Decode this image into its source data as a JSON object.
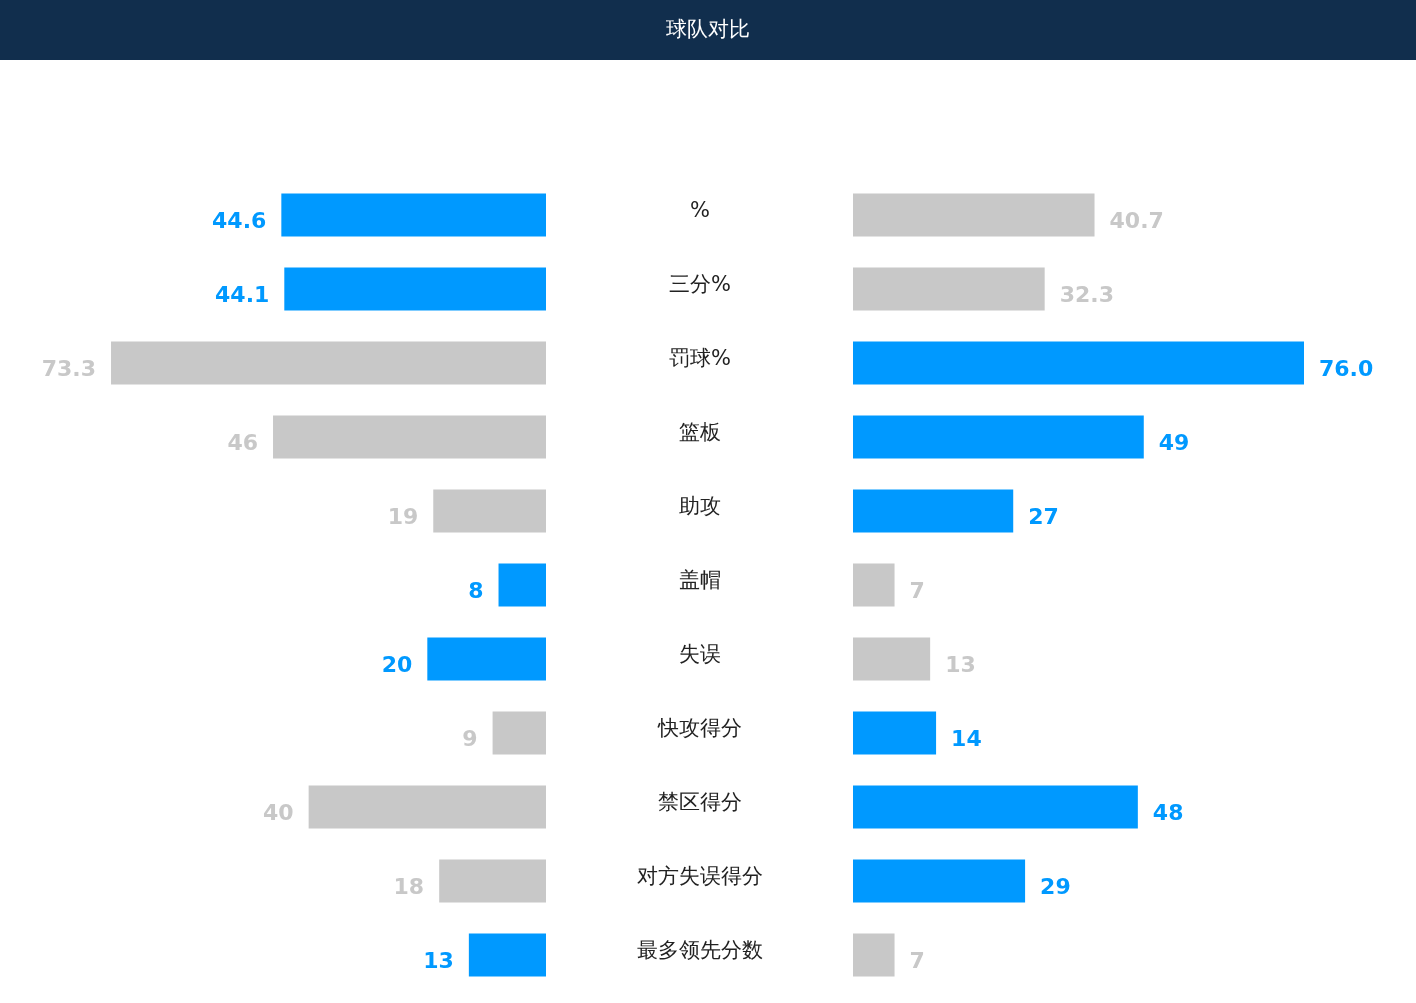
{
  "chart_data": [
    {
      "type": "bar",
      "orientation": "horizontal",
      "title": "球队对比",
      "categories": [
        "%",
        "三分%",
        "罚球%",
        "篮板",
        "助攻",
        "盖帽",
        "失误",
        "快攻得分",
        "禁区得分",
        "对方失误得分",
        "最多领先分数"
      ],
      "values": [
        44.6,
        44.1,
        73.3,
        46,
        19,
        8,
        20,
        9,
        40,
        18,
        13
      ],
      "value_labels": [
        "44.6",
        "44.1",
        "73.3",
        "46",
        "19",
        "8",
        "20",
        "9",
        "40",
        "18",
        "13"
      ],
      "colors": [
        "#0099ff",
        "#0099ff",
        "#c8c8c8",
        "#c8c8c8",
        "#c8c8c8",
        "#0099ff",
        "#0099ff",
        "#c8c8c8",
        "#c8c8c8",
        "#c8c8c8",
        "#0099ff"
      ]
    },
    {
      "type": "bar",
      "orientation": "horizontal",
      "categories": [
        null,
        null,
        null,
        null,
        null,
        null,
        null,
        null,
        null,
        null,
        null
      ],
      "values": [
        40.7,
        32.3,
        76.0,
        49,
        27,
        7,
        13,
        14,
        48,
        29,
        7
      ],
      "value_labels": [
        "40.7",
        "32.3",
        "76.0",
        "49",
        "27",
        "7",
        "13",
        "14",
        "48",
        "29",
        "7"
      ],
      "colors": [
        "#c8c8c8",
        "#c8c8c8",
        "#0099ff",
        "#0099ff",
        "#0099ff",
        "#c8c8c8",
        "#c8c8c8",
        "#0099ff",
        "#0099ff",
        "#0099ff",
        "#c8c8c8"
      ]
    }
  ]
}
